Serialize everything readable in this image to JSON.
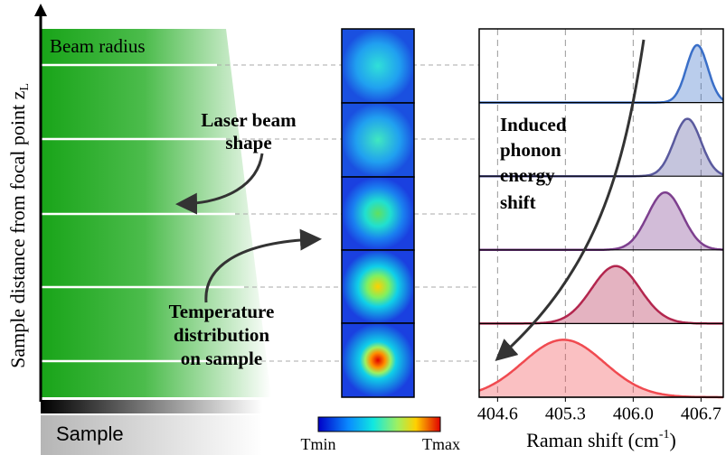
{
  "left_panel": {
    "beam_label": "Beam radius",
    "y_label": "Sample distance from focal point z",
    "y_label_sub": "L",
    "laser_label": [
      "Laser beam",
      "shape"
    ],
    "temperature_label": [
      "Temperature",
      "distribution",
      "on sample"
    ],
    "sample_label": "Sample"
  },
  "middle_panel": {
    "colorbar_min": "Tmin",
    "colorbar_max": "Tmax"
  },
  "raman_chart": {
    "type": "line",
    "annotation": [
      "Induced",
      "phonon",
      "energy",
      "shift"
    ],
    "xlabel": "Raman shift (cm",
    "xlabel_sup": "-1",
    "xlabel_end": ")",
    "xlim": [
      404.41,
      406.93
    ],
    "xticks": [
      404.6,
      405.3,
      {
        "value": 406.0,
        "label": "406.0"
      },
      406.7
    ],
    "series": [
      {
        "color": "#3a6fc8",
        "center": 406.66,
        "sigma": 0.11
      },
      {
        "color": "#5a5a9e",
        "center": 406.56,
        "sigma": 0.14
      },
      {
        "color": "#7d3f8e",
        "center": 406.33,
        "sigma": 0.18
      },
      {
        "color": "#b3264e",
        "center": 405.82,
        "sigma": 0.25
      },
      {
        "color": "#f04a50",
        "center": 405.28,
        "sigma": 0.42
      }
    ]
  }
}
